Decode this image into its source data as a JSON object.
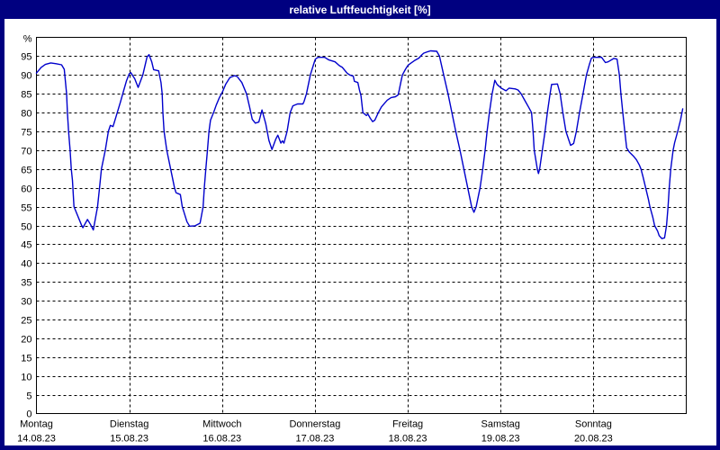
{
  "window": {
    "title": "relative Luftfeuchtigkeit [%]"
  },
  "colors": {
    "frame_navy": "#000080",
    "title_text": "#FFFFFF",
    "plot_bg": "#FFFFFF",
    "grid": "#000000",
    "axis": "#000000",
    "line": "#0000CC"
  },
  "chart_data": {
    "type": "line",
    "title": "relative Luftfeuchtigkeit [%]",
    "ylabel": "%",
    "ylim": [
      0,
      100
    ],
    "ytick_start": 0,
    "ytick_step": 5,
    "ytick_end": 95,
    "x_total_hours": 168,
    "grid": "dashed",
    "legend": "none",
    "days": [
      {
        "name": "Montag",
        "date": "14.08.23"
      },
      {
        "name": "Dienstag",
        "date": "15.08.23"
      },
      {
        "name": "Mittwoch",
        "date": "16.08.23"
      },
      {
        "name": "Donnerstag",
        "date": "17.08.23"
      },
      {
        "name": "Freitag",
        "date": "18.08.23"
      },
      {
        "name": "Samstag",
        "date": "19.08.23"
      },
      {
        "name": "Sonntag",
        "date": "20.08.23"
      }
    ],
    "series": [
      {
        "name": "relative Luftfeuchtigkeit",
        "unit": "%",
        "points_hour_value": [
          [
            0,
            90.5
          ],
          [
            1.2,
            92
          ],
          [
            2.3,
            92.8
          ],
          [
            3.7,
            93.2
          ],
          [
            5.1,
            93
          ],
          [
            6.5,
            92.7
          ],
          [
            7.2,
            91.5
          ],
          [
            7.8,
            85
          ],
          [
            8.0,
            80
          ],
          [
            8.3,
            75
          ],
          [
            8.7,
            70
          ],
          [
            9.0,
            65
          ],
          [
            9.3,
            62
          ],
          [
            9.7,
            55
          ],
          [
            11.6,
            50.2
          ],
          [
            12.0,
            49.4
          ],
          [
            13.2,
            51.6
          ],
          [
            14.0,
            50.2
          ],
          [
            14.7,
            48.8
          ],
          [
            15.8,
            55
          ],
          [
            16.3,
            60
          ],
          [
            16.8,
            65
          ],
          [
            17.8,
            70
          ],
          [
            18.6,
            75
          ],
          [
            19.1,
            76.6
          ],
          [
            19.8,
            76.3
          ],
          [
            20.9,
            80
          ],
          [
            21.7,
            82.8
          ],
          [
            22.6,
            86
          ],
          [
            23.3,
            88.5
          ],
          [
            24.0,
            90.3
          ],
          [
            24.4,
            90.6
          ],
          [
            25.4,
            89
          ],
          [
            26.3,
            86.7
          ],
          [
            27.5,
            90
          ],
          [
            28.6,
            94.8
          ],
          [
            29.1,
            95.4
          ],
          [
            29.8,
            93.5
          ],
          [
            30.3,
            91.4
          ],
          [
            31.6,
            91.1
          ],
          [
            32.2,
            88
          ],
          [
            32.5,
            85
          ],
          [
            32.7,
            80
          ],
          [
            33.0,
            75
          ],
          [
            33.7,
            70
          ],
          [
            34.7,
            65
          ],
          [
            35.7,
            60
          ],
          [
            36.1,
            58.7
          ],
          [
            37.2,
            58.2
          ],
          [
            37.7,
            55
          ],
          [
            38.9,
            51
          ],
          [
            39.6,
            49.8
          ],
          [
            41.0,
            49.9
          ],
          [
            42.3,
            50.6
          ],
          [
            43.1,
            55
          ],
          [
            43.4,
            60
          ],
          [
            43.8,
            65
          ],
          [
            44.2,
            70
          ],
          [
            44.6,
            75
          ],
          [
            45.0,
            78
          ],
          [
            45.8,
            80
          ],
          [
            46.5,
            82
          ],
          [
            47.3,
            84
          ],
          [
            48.1,
            85.5
          ],
          [
            48.9,
            87.5
          ],
          [
            50.0,
            89.3
          ],
          [
            51.2,
            89.8
          ],
          [
            51.9,
            89.6
          ],
          [
            53.1,
            88
          ],
          [
            54.3,
            85
          ],
          [
            55.1,
            81.5
          ],
          [
            55.8,
            78.2
          ],
          [
            56.6,
            77.2
          ],
          [
            57.5,
            77.5
          ],
          [
            58.3,
            80.7
          ],
          [
            59.3,
            77
          ],
          [
            60.1,
            72.6
          ],
          [
            60.9,
            70.2
          ],
          [
            61.9,
            73
          ],
          [
            62.4,
            74
          ],
          [
            63.2,
            71.9
          ],
          [
            63.6,
            72.5
          ],
          [
            64.0,
            71.9
          ],
          [
            64.8,
            75
          ],
          [
            65.6,
            80
          ],
          [
            66.3,
            81.8
          ],
          [
            67.5,
            82.3
          ],
          [
            68.9,
            82.3
          ],
          [
            69.2,
            83
          ],
          [
            69.8,
            85
          ],
          [
            70.4,
            88
          ],
          [
            70.8,
            90
          ],
          [
            71.4,
            92
          ],
          [
            71.8,
            93.3
          ],
          [
            72.1,
            94.2
          ],
          [
            72.8,
            94.7
          ],
          [
            74.5,
            94.7
          ],
          [
            75.6,
            94
          ],
          [
            77.2,
            93.5
          ],
          [
            78.3,
            92.5
          ],
          [
            79.1,
            92
          ],
          [
            80.3,
            90.5
          ],
          [
            81.0,
            90
          ],
          [
            81.9,
            89.7
          ],
          [
            82.2,
            88.3
          ],
          [
            83.1,
            88
          ],
          [
            83.5,
            86
          ],
          [
            83.9,
            84.5
          ],
          [
            84.4,
            80
          ],
          [
            85.3,
            79.2
          ],
          [
            85.7,
            79.6
          ],
          [
            86.3,
            78.5
          ],
          [
            86.9,
            77.6
          ],
          [
            87.5,
            78
          ],
          [
            88.4,
            80
          ],
          [
            89.2,
            81.5
          ],
          [
            90.0,
            82.5
          ],
          [
            90.7,
            83.3
          ],
          [
            91.7,
            84
          ],
          [
            92.8,
            84.2
          ],
          [
            93.5,
            84.7
          ],
          [
            93.8,
            86
          ],
          [
            94.2,
            88
          ],
          [
            94.6,
            90
          ],
          [
            95.4,
            91.5
          ],
          [
            96.0,
            92.5
          ],
          [
            96.6,
            93
          ],
          [
            97.7,
            93.8
          ],
          [
            98.9,
            94.5
          ],
          [
            99.6,
            95.3
          ],
          [
            100.1,
            95.8
          ],
          [
            101.2,
            96.2
          ],
          [
            101.9,
            96.4
          ],
          [
            103.5,
            96.3
          ],
          [
            104.2,
            95
          ],
          [
            105.3,
            90
          ],
          [
            106.4,
            85
          ],
          [
            107.4,
            80
          ],
          [
            108.4,
            75
          ],
          [
            109.5,
            70
          ],
          [
            110.5,
            65
          ],
          [
            111.5,
            60
          ],
          [
            112.5,
            55
          ],
          [
            113.1,
            53.5
          ],
          [
            113.7,
            55
          ],
          [
            114.7,
            60
          ],
          [
            115.4,
            65
          ],
          [
            116.0,
            70
          ],
          [
            116.5,
            75
          ],
          [
            117.1,
            80
          ],
          [
            117.8,
            85
          ],
          [
            118.5,
            88.6
          ],
          [
            119.1,
            87.5
          ],
          [
            119.6,
            87
          ],
          [
            120.3,
            86.4
          ],
          [
            121.4,
            85.8
          ],
          [
            122.2,
            86.5
          ],
          [
            123.8,
            86.3
          ],
          [
            124.5,
            86
          ],
          [
            125.3,
            85
          ],
          [
            126.4,
            83
          ],
          [
            127.2,
            81.5
          ],
          [
            128.0,
            80
          ],
          [
            128.4,
            75
          ],
          [
            128.7,
            70
          ],
          [
            129.5,
            65
          ],
          [
            129.8,
            63.8
          ],
          [
            130.1,
            65
          ],
          [
            130.8,
            70
          ],
          [
            131.5,
            75
          ],
          [
            132.1,
            80
          ],
          [
            132.8,
            85
          ],
          [
            133.2,
            87.5
          ],
          [
            134.7,
            87.6
          ],
          [
            135.4,
            85
          ],
          [
            136.1,
            80
          ],
          [
            136.9,
            75
          ],
          [
            137.7,
            72.5
          ],
          [
            138.1,
            71.3
          ],
          [
            138.9,
            71.8
          ],
          [
            139.6,
            75
          ],
          [
            140.4,
            80
          ],
          [
            141.3,
            85
          ],
          [
            142.2,
            90
          ],
          [
            143.0,
            93
          ],
          [
            143.5,
            94.5
          ],
          [
            144.0,
            94.7
          ],
          [
            146.1,
            94.7
          ],
          [
            147.1,
            93.3
          ],
          [
            147.8,
            93.5
          ],
          [
            149.3,
            94.4
          ],
          [
            150.1,
            94.2
          ],
          [
            150.7,
            90
          ],
          [
            151.1,
            85
          ],
          [
            151.6,
            80
          ],
          [
            152.1,
            75
          ],
          [
            152.6,
            70.6
          ],
          [
            153.3,
            69.5
          ],
          [
            154.3,
            68.5
          ],
          [
            155.1,
            67.5
          ],
          [
            155.9,
            66
          ],
          [
            156.3,
            65
          ],
          [
            156.8,
            63
          ],
          [
            157.5,
            60
          ],
          [
            158.2,
            57
          ],
          [
            158.6,
            55
          ],
          [
            159.4,
            52
          ],
          [
            159.8,
            50
          ],
          [
            160.6,
            48.5
          ],
          [
            161.0,
            47.3
          ],
          [
            161.7,
            46.5
          ],
          [
            162.4,
            46.7
          ],
          [
            162.9,
            50
          ],
          [
            163.3,
            55
          ],
          [
            163.6,
            60
          ],
          [
            164.0,
            65
          ],
          [
            164.6,
            70
          ],
          [
            165.0,
            72
          ],
          [
            165.8,
            75
          ],
          [
            166.5,
            78
          ],
          [
            167.1,
            81
          ]
        ]
      }
    ]
  }
}
